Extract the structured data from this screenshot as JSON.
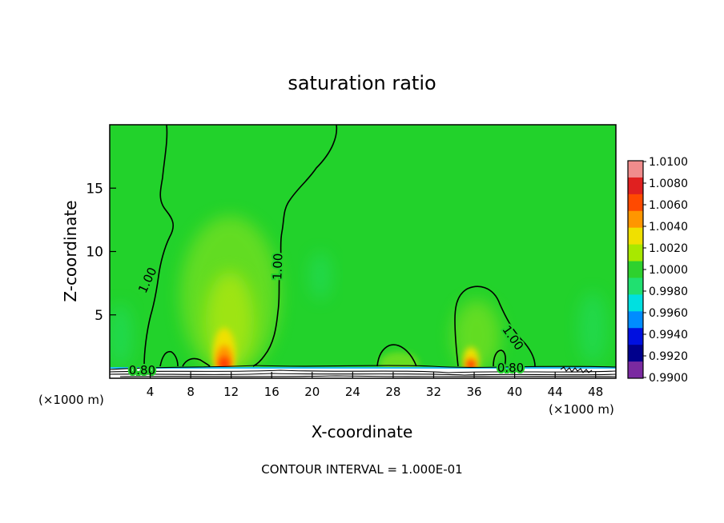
{
  "chart_data": {
    "type": "heatmap",
    "title": "saturation ratio",
    "xlabel": "X-coordinate",
    "ylabel": "Z-coordinate",
    "x_unit_left": "(×1000 m)",
    "x_unit_right": "(×1000 m)",
    "xlim": [
      0,
      50
    ],
    "ylim": [
      0,
      20
    ],
    "x_ticks": [
      4,
      8,
      12,
      16,
      20,
      24,
      28,
      32,
      36,
      40,
      44,
      48
    ],
    "y_ticks": [
      5,
      10,
      15
    ],
    "footer": "CONTOUR INTERVAL = 1.000E-01",
    "colorbar": {
      "levels": [
        "1.0100",
        "1.0080",
        "1.0060",
        "1.0040",
        "1.0020",
        "1.0000",
        "0.9980",
        "0.9960",
        "0.9940",
        "0.9920",
        "0.9900"
      ],
      "colors": [
        "#f08c8c",
        "#e02020",
        "#ff4a00",
        "#ff9600",
        "#f0e000",
        "#a8e800",
        "#2ed12e",
        "#20e070",
        "#00e0e0",
        "#008cff",
        "#0010e0",
        "#00008c",
        "#7a2aa0"
      ],
      "range": [
        0.99,
        1.01
      ]
    },
    "background_color": "#22d22b",
    "contour_labels": [
      {
        "text": "1.00",
        "x": 4.1,
        "y": 7.6,
        "angle": -65
      },
      {
        "text": "1.00",
        "x": 17.0,
        "y": 8.8,
        "angle": -88
      },
      {
        "text": "1.00",
        "x": 39.5,
        "y": 3.0,
        "angle": 55
      },
      {
        "text": "0.80",
        "x": 3.2,
        "y": 0.3,
        "angle": 0
      },
      {
        "text": "0.80",
        "x": 39.6,
        "y": 0.5,
        "angle": 0
      }
    ],
    "features": [
      {
        "name": "updraft plume",
        "x": 11.5,
        "peak_z": 1.0,
        "max_value": 1.0085
      },
      {
        "name": "updraft plume",
        "x": 35.8,
        "peak_z": 1.0,
        "max_value": 1.0075
      },
      {
        "name": "moist column",
        "x": 12.0,
        "top_z": 13.0,
        "value": 1.0015
      },
      {
        "name": "moist column",
        "x": 36.0,
        "top_z": 6.0,
        "value": 1.001
      }
    ]
  }
}
